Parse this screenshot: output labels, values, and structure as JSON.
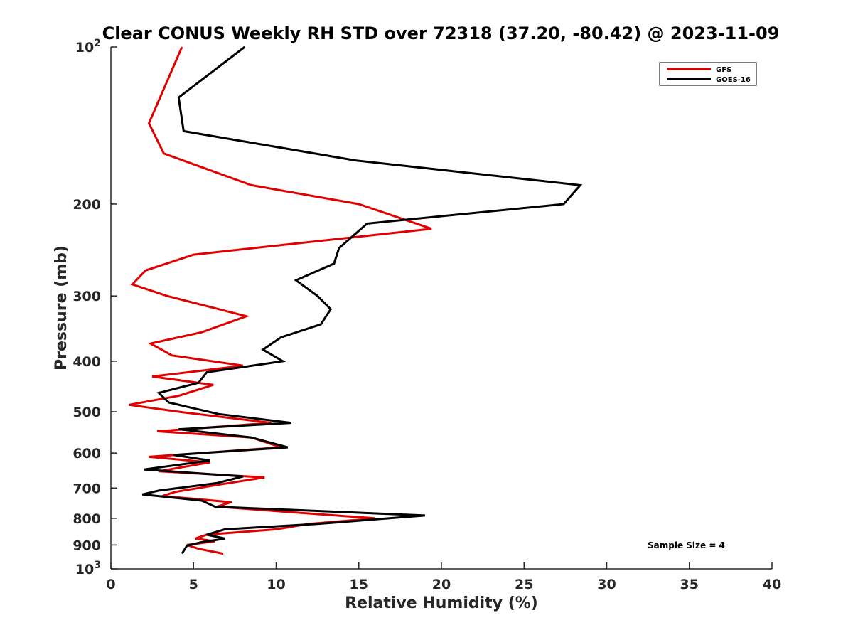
{
  "chart_data": {
    "type": "line",
    "title": "Clear CONUS Weekly RH STD over 72318 (37.20, -80.42) @ 2023-11-09",
    "xlabel": "Relative Humidity (%)",
    "ylabel": "Pressure (mb)",
    "xlim": [
      0,
      40
    ],
    "ylim": [
      100,
      1000
    ],
    "yscale": "log",
    "y_reversed": true,
    "xticks": [
      "0",
      "5",
      "10",
      "15",
      "20",
      "25",
      "30",
      "35",
      "40"
    ],
    "yticks": [
      {
        "value": 100,
        "base": "10",
        "exp": "2"
      },
      {
        "value": 200,
        "label": "200"
      },
      {
        "value": 300,
        "label": "300"
      },
      {
        "value": 400,
        "label": "400"
      },
      {
        "value": 500,
        "label": "500"
      },
      {
        "value": 600,
        "label": "600"
      },
      {
        "value": 700,
        "label": "700"
      },
      {
        "value": 800,
        "label": "800"
      },
      {
        "value": 900,
        "label": "900"
      },
      {
        "value": 1000,
        "base": "10",
        "exp": "3"
      }
    ],
    "grid": false,
    "legend_position": "top-right",
    "annotation": "Sample Size = 4",
    "series": [
      {
        "name": "GFS",
        "color": "#e00000",
        "points": [
          [
            4.3,
            100
          ],
          [
            2.3,
            140
          ],
          [
            3.2,
            160
          ],
          [
            8.5,
            184
          ],
          [
            15.0,
            200
          ],
          [
            19.4,
            223
          ],
          [
            5.0,
            250
          ],
          [
            2.1,
            268
          ],
          [
            1.3,
            285
          ],
          [
            3.4,
            300
          ],
          [
            8.2,
            328
          ],
          [
            5.5,
            352
          ],
          [
            2.4,
            370
          ],
          [
            3.7,
            390
          ],
          [
            8.0,
            408
          ],
          [
            2.5,
            428
          ],
          [
            6.2,
            444
          ],
          [
            4.1,
            466
          ],
          [
            1.1,
            485
          ],
          [
            4.1,
            500
          ],
          [
            9.7,
            525
          ],
          [
            2.8,
            545
          ],
          [
            8.5,
            560
          ],
          [
            10.3,
            585
          ],
          [
            2.3,
            610
          ],
          [
            6.0,
            625
          ],
          [
            2.9,
            650
          ],
          [
            9.3,
            668
          ],
          [
            6.5,
            690
          ],
          [
            3.9,
            712
          ],
          [
            3.1,
            725
          ],
          [
            7.3,
            745
          ],
          [
            6.4,
            760
          ],
          [
            16.0,
            800
          ],
          [
            12.0,
            820
          ],
          [
            10.0,
            840
          ],
          [
            5.8,
            860
          ],
          [
            5.1,
            875
          ],
          [
            6.3,
            885
          ],
          [
            4.6,
            900
          ],
          [
            5.3,
            915
          ],
          [
            6.8,
            935
          ]
        ]
      },
      {
        "name": "GOES-16",
        "color": "#000000",
        "points": [
          [
            8.1,
            100
          ],
          [
            4.1,
            125
          ],
          [
            4.4,
            145
          ],
          [
            14.8,
            165
          ],
          [
            28.4,
            184
          ],
          [
            27.4,
            200
          ],
          [
            15.5,
            218
          ],
          [
            13.8,
            243
          ],
          [
            13.5,
            260
          ],
          [
            11.2,
            280
          ],
          [
            12.5,
            300
          ],
          [
            13.3,
            318
          ],
          [
            12.7,
            340
          ],
          [
            10.3,
            360
          ],
          [
            9.2,
            380
          ],
          [
            10.4,
            400
          ],
          [
            5.8,
            420
          ],
          [
            5.3,
            440
          ],
          [
            2.9,
            460
          ],
          [
            3.5,
            480
          ],
          [
            6.5,
            505
          ],
          [
            10.9,
            525
          ],
          [
            4.1,
            540
          ],
          [
            8.5,
            560
          ],
          [
            10.7,
            585
          ],
          [
            3.8,
            605
          ],
          [
            6.0,
            620
          ],
          [
            2.0,
            645
          ],
          [
            8.0,
            665
          ],
          [
            6.4,
            685
          ],
          [
            2.9,
            708
          ],
          [
            1.9,
            720
          ],
          [
            5.5,
            740
          ],
          [
            6.3,
            760
          ],
          [
            19.0,
            790
          ],
          [
            12.5,
            820
          ],
          [
            6.9,
            840
          ],
          [
            5.8,
            860
          ],
          [
            6.9,
            875
          ],
          [
            5.4,
            890
          ],
          [
            4.6,
            903
          ],
          [
            4.3,
            935
          ]
        ]
      }
    ]
  }
}
